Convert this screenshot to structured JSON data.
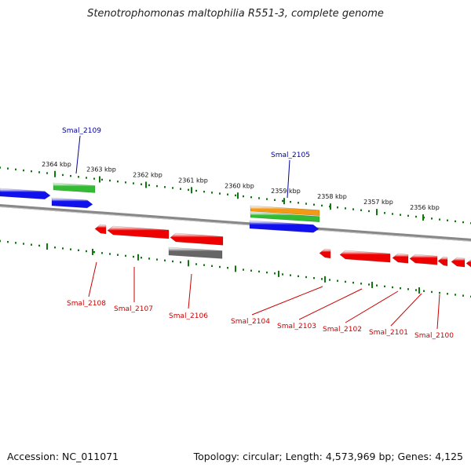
{
  "title": "Stenotrophomonas maltophilia R551-3, complete genome",
  "footer": {
    "accession": "Accession: NC_011071",
    "summary": "Topology: circular; Length: 4,573,969 bp; Genes: 4,125"
  },
  "ticks": [
    "2364 kbp",
    "2363 kbp",
    "2362 kbp",
    "2361 kbp",
    "2360 kbp",
    "2359 kbp",
    "2358 kbp",
    "2357 kbp",
    "2356 kbp"
  ],
  "genes_top": [
    "Smal_2109",
    "Smal_2105"
  ],
  "genes_bottom": [
    "Smal_2108",
    "Smal_2107",
    "Smal_2106",
    "Smal_2104",
    "Smal_2103",
    "Smal_2102",
    "Smal_2101",
    "Smal_2100"
  ],
  "colors": {
    "forward": "#1111ee",
    "reverse": "#ee0000",
    "green": "#33bb33",
    "orange": "#f29a16",
    "gray": "#666666",
    "tick": "#117711",
    "backbone": "#888888",
    "label_top": "#00009a",
    "label_bottom": "#cc0000"
  }
}
